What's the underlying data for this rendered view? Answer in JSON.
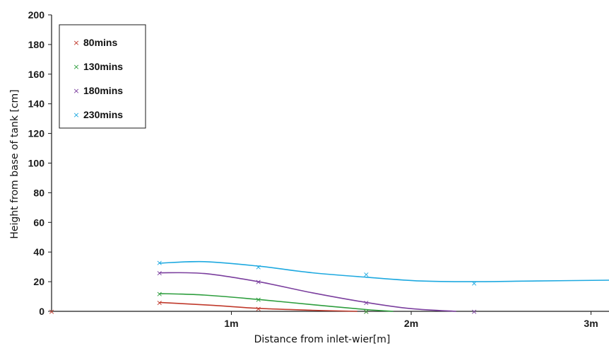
{
  "chart_data": {
    "type": "line",
    "title": "",
    "xlabel": "Distance from inlet-wier[m]",
    "ylabel": "Height from base of tank [cm]",
    "xlim": [
      0,
      3.1
    ],
    "ylim": [
      0,
      200
    ],
    "yticks": [
      0,
      20,
      40,
      60,
      80,
      100,
      120,
      140,
      160,
      180,
      200
    ],
    "xticks": [
      {
        "value": 1.0,
        "label": "1m"
      },
      {
        "value": 2.0,
        "label": "2m"
      },
      {
        "value": 3.0,
        "label": "3m"
      }
    ],
    "grid": false,
    "legend_position": "top-left",
    "marker_symbol": "×",
    "series": [
      {
        "name": "80mins",
        "color": "#c0392b",
        "points": [
          [
            0.0,
            0
          ],
          [
            0.6,
            6
          ],
          [
            1.15,
            2
          ],
          [
            1.75,
            0
          ]
        ],
        "curve": [
          [
            0.6,
            6
          ],
          [
            0.9,
            4
          ],
          [
            1.15,
            2
          ],
          [
            1.45,
            0.7
          ],
          [
            1.7,
            0
          ]
        ]
      },
      {
        "name": "130mins",
        "color": "#2e9e3e",
        "points": [
          [
            0.6,
            12
          ],
          [
            1.15,
            8
          ],
          [
            1.75,
            0
          ]
        ],
        "curve": [
          [
            0.6,
            12
          ],
          [
            0.85,
            11
          ],
          [
            1.15,
            8
          ],
          [
            1.45,
            4.5
          ],
          [
            1.75,
            1.2
          ],
          [
            1.9,
            0
          ]
        ]
      },
      {
        "name": "180mins",
        "color": "#7b3f9e",
        "points": [
          [
            0.6,
            26
          ],
          [
            1.15,
            20
          ],
          [
            1.75,
            6
          ],
          [
            2.35,
            0
          ]
        ],
        "curve": [
          [
            0.6,
            26
          ],
          [
            0.85,
            25.5
          ],
          [
            1.15,
            20
          ],
          [
            1.45,
            12.5
          ],
          [
            1.75,
            6
          ],
          [
            2.0,
            1.8
          ],
          [
            2.25,
            0
          ]
        ]
      },
      {
        "name": "230mins",
        "color": "#1ea9e0",
        "points": [
          [
            0.6,
            33
          ],
          [
            1.15,
            30
          ],
          [
            1.75,
            25
          ],
          [
            2.35,
            19
          ]
        ],
        "curve": [
          [
            0.6,
            32.5
          ],
          [
            0.85,
            33.5
          ],
          [
            1.15,
            30.5
          ],
          [
            1.45,
            26
          ],
          [
            1.75,
            23
          ],
          [
            2.05,
            20.5
          ],
          [
            2.35,
            20
          ],
          [
            2.7,
            20.5
          ],
          [
            3.1,
            21
          ]
        ]
      }
    ]
  }
}
